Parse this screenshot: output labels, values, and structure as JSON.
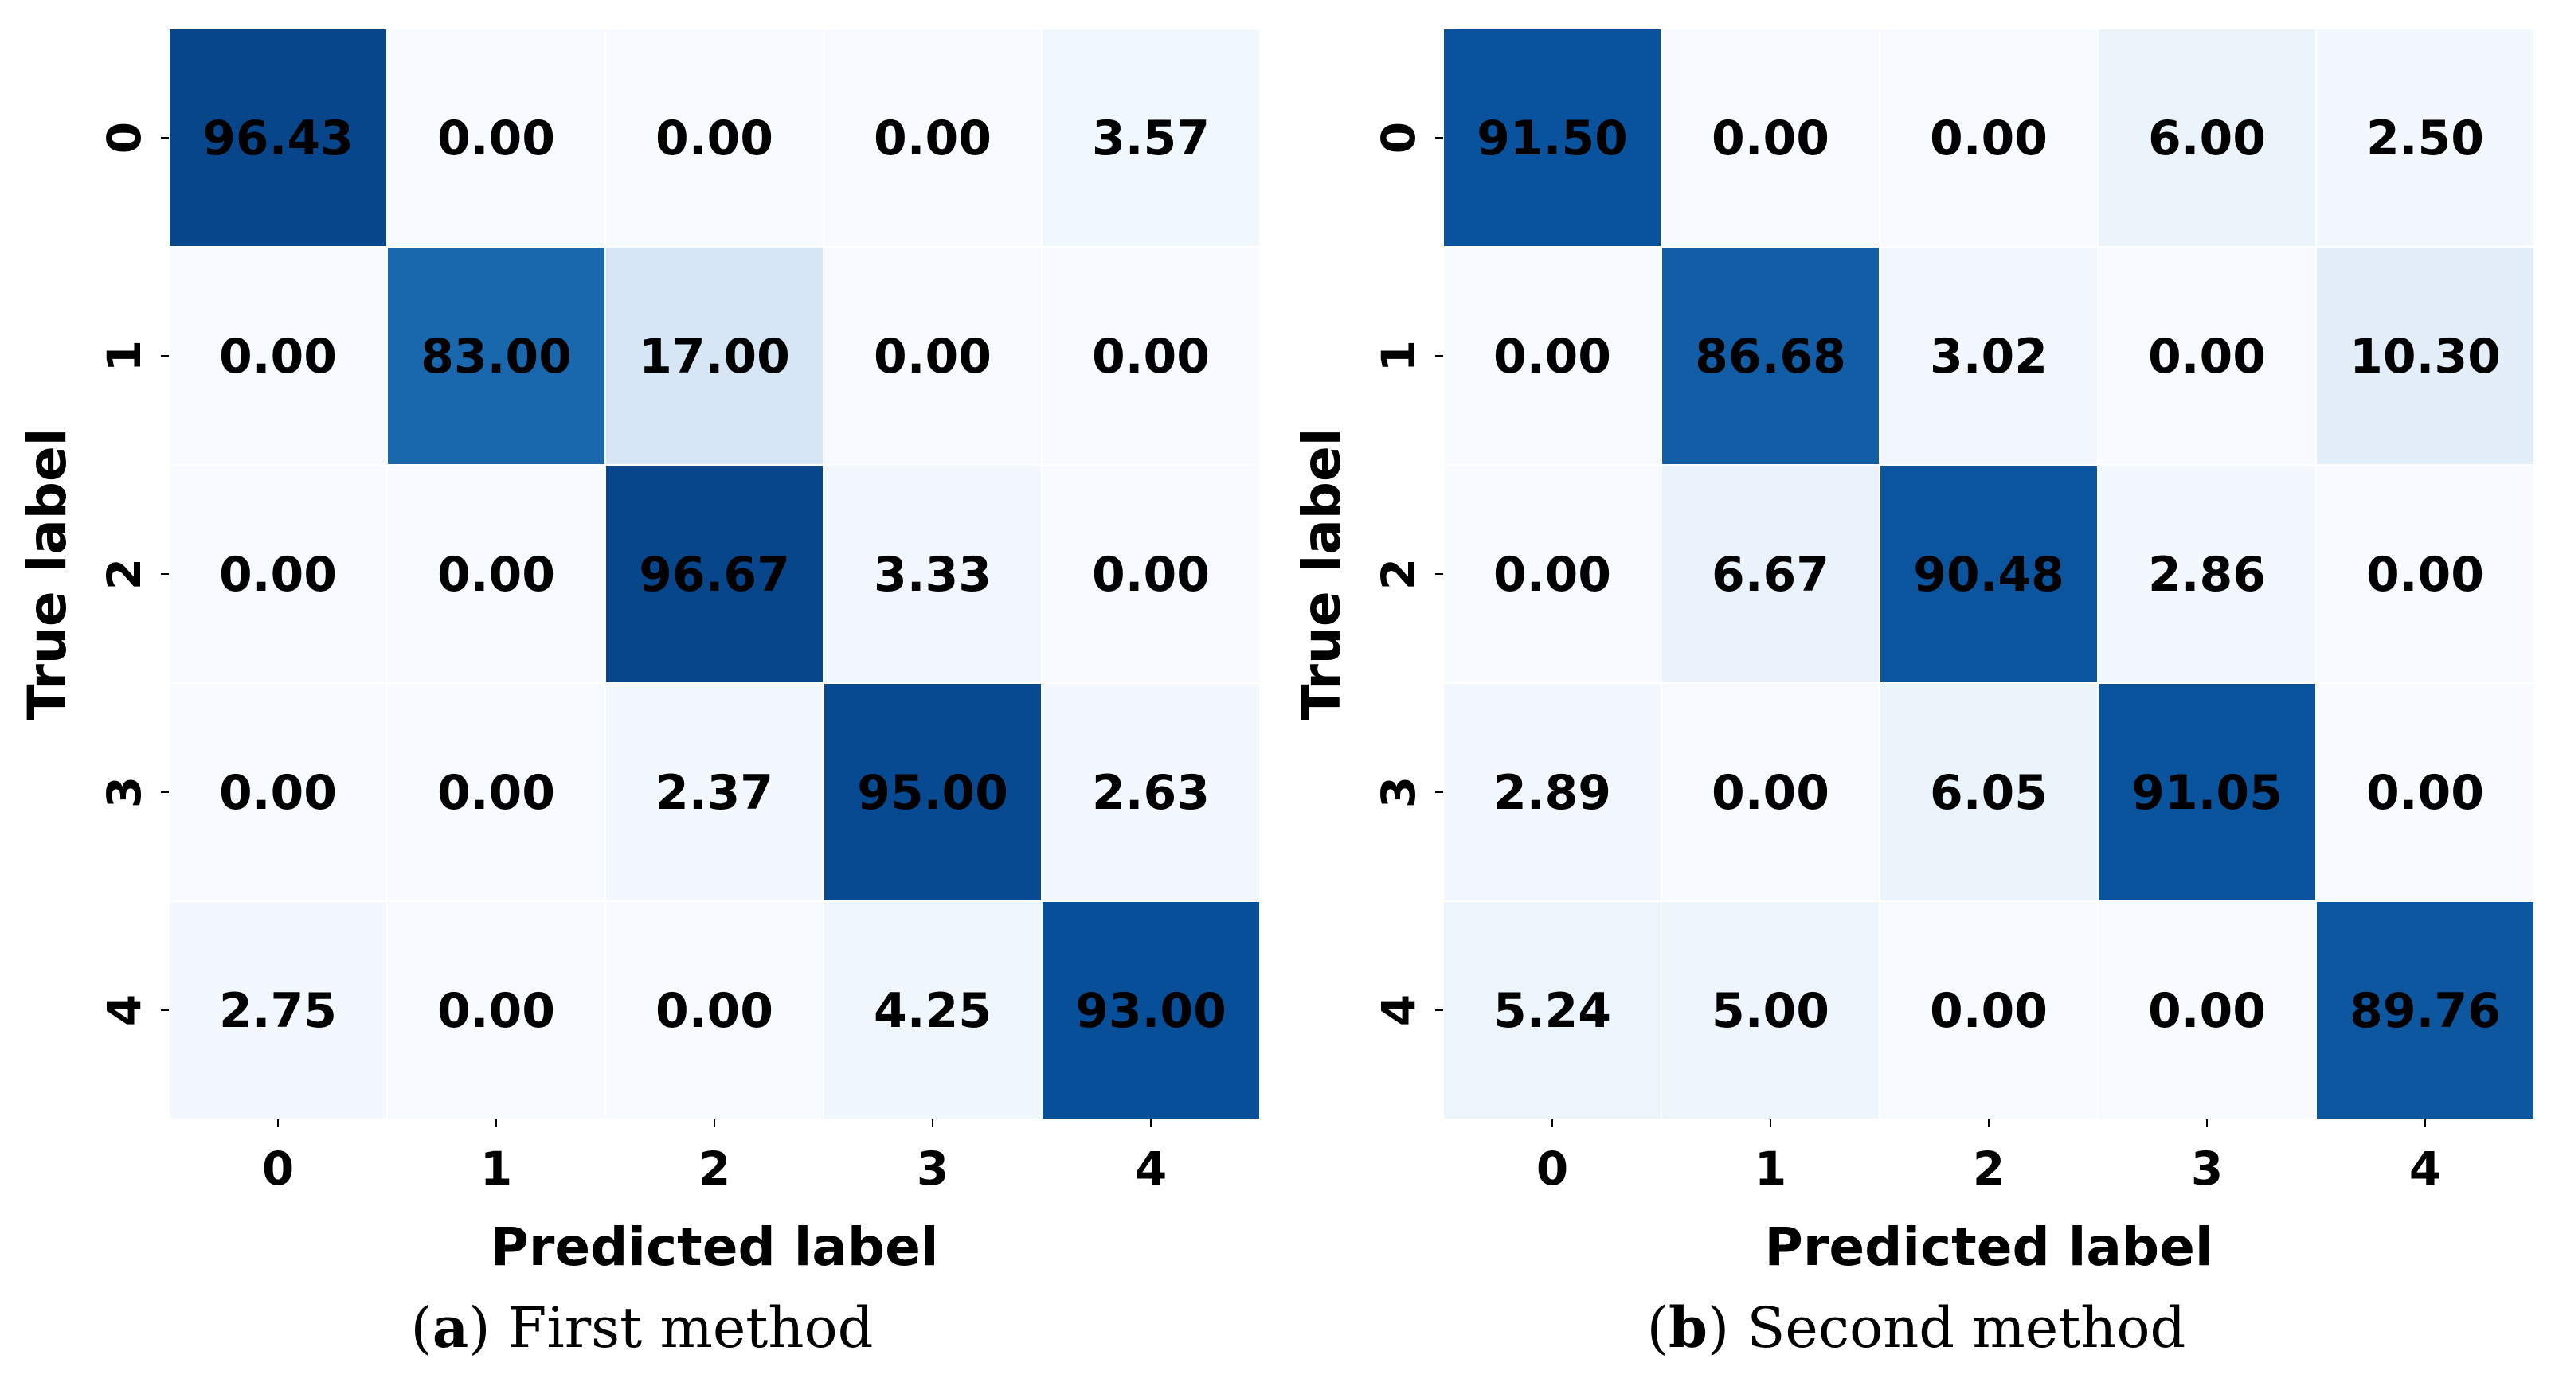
{
  "colorscale": {
    "low": "#f7fbff",
    "high": "#08306b"
  },
  "panels": [
    {
      "caption_letter": "a",
      "caption_text": "First method"
    },
    {
      "caption_letter": "b",
      "caption_text": "Second method"
    }
  ],
  "chart_data": [
    {
      "type": "heatmap",
      "title": "",
      "xlabel": "Predicted label",
      "ylabel": "True label",
      "x_categories": [
        "0",
        "1",
        "2",
        "3",
        "4"
      ],
      "y_categories": [
        "0",
        "1",
        "2",
        "3",
        "4"
      ],
      "values": [
        [
          96.43,
          0.0,
          0.0,
          0.0,
          3.57
        ],
        [
          0.0,
          83.0,
          17.0,
          0.0,
          0.0
        ],
        [
          0.0,
          0.0,
          96.67,
          3.33,
          0.0
        ],
        [
          0.0,
          0.0,
          2.37,
          95.0,
          2.63
        ],
        [
          2.75,
          0.0,
          0.0,
          4.25,
          93.0
        ]
      ],
      "labels": [
        [
          "96.43",
          "0.00",
          "0.00",
          "0.00",
          "3.57"
        ],
        [
          "0.00",
          "83.00",
          "17.00",
          "0.00",
          "0.00"
        ],
        [
          "0.00",
          "0.00",
          "96.67",
          "3.33",
          "0.00"
        ],
        [
          "0.00",
          "0.00",
          "2.37",
          "95.00",
          "2.63"
        ],
        [
          "2.75",
          "0.00",
          "0.00",
          "4.25",
          "93.00"
        ]
      ],
      "colormap": "Blues"
    },
    {
      "type": "heatmap",
      "title": "",
      "xlabel": "Predicted label",
      "ylabel": "True label",
      "x_categories": [
        "0",
        "1",
        "2",
        "3",
        "4"
      ],
      "y_categories": [
        "0",
        "1",
        "2",
        "3",
        "4"
      ],
      "values": [
        [
          91.5,
          0.0,
          0.0,
          6.0,
          2.5
        ],
        [
          0.0,
          86.68,
          3.02,
          0.0,
          10.3
        ],
        [
          0.0,
          6.67,
          90.48,
          2.86,
          0.0
        ],
        [
          2.89,
          0.0,
          6.05,
          91.05,
          0.0
        ],
        [
          5.24,
          5.0,
          0.0,
          0.0,
          89.76
        ]
      ],
      "labels": [
        [
          "91.50",
          "0.00",
          "0.00",
          "6.00",
          "2.50"
        ],
        [
          "0.00",
          "86.68",
          "3.02",
          "0.00",
          "10.30"
        ],
        [
          "0.00",
          "6.67",
          "90.48",
          "2.86",
          "0.00"
        ],
        [
          "2.89",
          "0.00",
          "6.05",
          "91.05",
          "0.00"
        ],
        [
          "5.24",
          "5.00",
          "0.00",
          "0.00",
          "89.76"
        ]
      ],
      "colormap": "Blues"
    }
  ]
}
